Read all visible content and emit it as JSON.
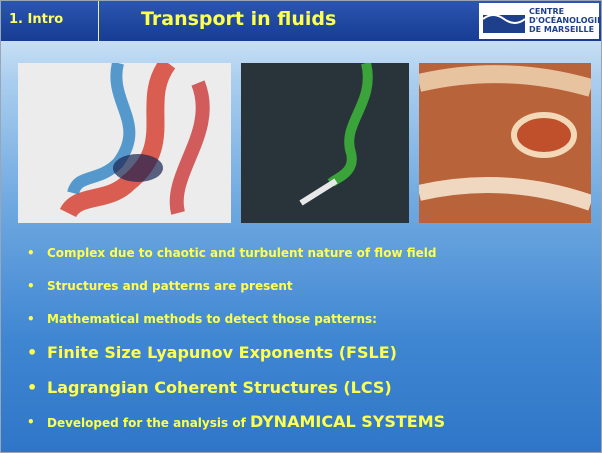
{
  "header": {
    "section": "1. Intro",
    "title": "Transport in fluids"
  },
  "logo": [
    "CENTRE",
    "D'OCÉANOLOGIE",
    "DE MARSEILLE"
  ],
  "bullets": [
    "Complex due to chaotic and turbulent nature of flow field",
    "Structures and patterns are present",
    "Mathematical methods to detect those patterns:",
    "Finite Size Lyapunov Exponents (FSLE)",
    "Lagrangian Coherent Structures (LCS)"
  ],
  "last_bullet": {
    "text": "Developed for the analysis of ",
    "emphasis": "DYNAMICAL SYSTEMS"
  }
}
